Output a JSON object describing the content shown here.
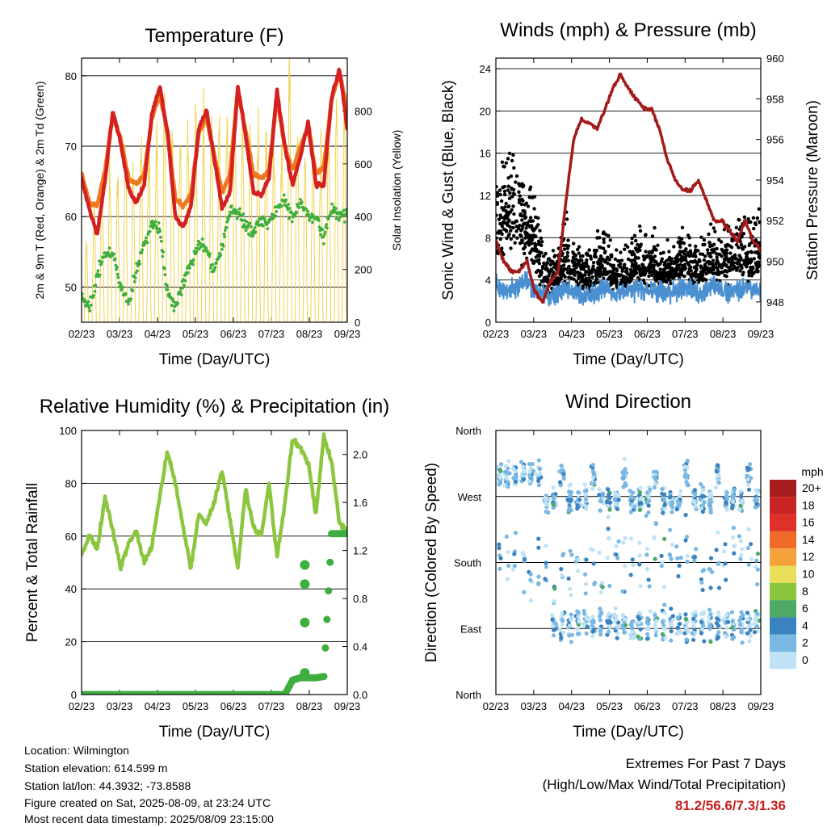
{
  "x_ticks": [
    "02/23",
    "03/23",
    "04/23",
    "05/23",
    "06/23",
    "07/23",
    "08/23",
    "09/23"
  ],
  "x_label": "Time (Day/UTC)",
  "chart_data": [
    {
      "id": "temperature",
      "type": "line",
      "title": "Temperature (F)",
      "xlabel": "Time (Day/UTC)",
      "ylabel": "2m & 9m T (Red, Orange) & 2m Td (Green)",
      "y2label": "Solar Insolation (Yellow)",
      "ylim": [
        45,
        82.5
      ],
      "y2lim": [
        0,
        1000
      ],
      "yticks": [
        50,
        60,
        70,
        80
      ],
      "y2ticks": [
        0,
        200,
        400,
        600,
        800
      ],
      "grid": true,
      "series": [
        {
          "key": "t9m",
          "color": "#f07820",
          "values": [
            66.0,
            62.0,
            61.5,
            66.5,
            74.5,
            71.0,
            65.5,
            64.5,
            66.0,
            74.0,
            77.5,
            72.0,
            62.5,
            61.5,
            63.0,
            72.0,
            74.0,
            68.5,
            63.5,
            66.0,
            78.0,
            72.0,
            66.0,
            65.5,
            66.5,
            77.0,
            70.0,
            66.5,
            70.0,
            72.5,
            66.0,
            67.0,
            76.5,
            80.5,
            75.0
          ]
        },
        {
          "key": "t2m",
          "color": "#d42020",
          "values": [
            65.5,
            61.0,
            57.5,
            65.0,
            75.0,
            70.5,
            64.0,
            62.0,
            64.5,
            74.5,
            78.5,
            72.0,
            60.0,
            58.5,
            61.5,
            72.5,
            75.0,
            68.0,
            61.0,
            63.5,
            78.5,
            71.5,
            63.5,
            63.0,
            65.5,
            78.0,
            70.0,
            64.5,
            68.5,
            73.5,
            64.5,
            64.5,
            77.0,
            81.0,
            72.5
          ]
        },
        {
          "key": "td2m",
          "color": "#3eae3e",
          "values": [
            48.5,
            47.0,
            52.0,
            54.5,
            55.0,
            50.0,
            48.0,
            52.0,
            56.0,
            59.0,
            58.0,
            49.0,
            47.0,
            50.5,
            53.5,
            56.0,
            55.5,
            52.0,
            56.0,
            61.0,
            60.5,
            59.0,
            57.5,
            60.0,
            59.0,
            61.0,
            62.0,
            60.0,
            62.0,
            60.5,
            60.0,
            57.0,
            61.0,
            60.0,
            60.5
          ]
        }
      ],
      "solar": {
        "color": "#f2d24a",
        "daily_peak": [
          300,
          420,
          520,
          600,
          550,
          700,
          620,
          760,
          680,
          740,
          800,
          720,
          690,
          760,
          780,
          820,
          800,
          760,
          740,
          800,
          760,
          720,
          760,
          740,
          700,
          680,
          980,
          800,
          620,
          720,
          700,
          760,
          800,
          780
        ]
      }
    },
    {
      "id": "winds",
      "type": "scatter",
      "title": "Winds (mph) & Pressure (mb)",
      "xlabel": "Time (Day/UTC)",
      "ylabel": "Sonic Wind & Gust (Blue, Black)",
      "y2label": "Station Pressure (Maroon)",
      "ylim": [
        0,
        25
      ],
      "y2lim": [
        947,
        960
      ],
      "yticks": [
        0,
        4,
        8,
        12,
        16,
        20,
        24
      ],
      "y2ticks": [
        948,
        950,
        952,
        954,
        956,
        958,
        960
      ],
      "grid": true,
      "series": [
        {
          "key": "wind",
          "color": "#4a90d0",
          "values": [
            3.5,
            3.2,
            3.0,
            3.4,
            3.8,
            3.0,
            2.6,
            2.4,
            2.8,
            3.2,
            2.8,
            2.6,
            2.6,
            3.0,
            3.4,
            2.8,
            2.8,
            3.0,
            3.2,
            3.0,
            3.0,
            2.8,
            2.8,
            3.0,
            3.2,
            3.0,
            2.8,
            3.0,
            3.4,
            3.0,
            3.0,
            3.2,
            3.4,
            3.0,
            3.2
          ]
        },
        {
          "key": "gust",
          "color": "#000000",
          "values": [
            8.0,
            10.0,
            11.0,
            9.0,
            8.5,
            7.5,
            4.5,
            4.0,
            4.5,
            6.0,
            5.0,
            4.5,
            4.0,
            5.0,
            5.5,
            4.0,
            4.0,
            4.5,
            5.5,
            5.0,
            5.5,
            4.5,
            4.5,
            5.0,
            5.5,
            5.0,
            4.5,
            5.5,
            6.0,
            5.5,
            6.0,
            6.5,
            6.0,
            6.0,
            6.5
          ]
        },
        {
          "key": "pressure",
          "color": "#a31a1a",
          "values": [
            951.0,
            950.0,
            949.5,
            949.5,
            950.0,
            948.5,
            948.0,
            949.0,
            949.5,
            953.0,
            956.0,
            957.0,
            956.8,
            956.5,
            957.5,
            958.5,
            959.2,
            958.5,
            958.0,
            957.5,
            957.5,
            956.5,
            955.0,
            954.0,
            953.5,
            953.5,
            954.0,
            953.0,
            952.0,
            952.0,
            951.5,
            951.0,
            952.0,
            951.0,
            950.5
          ]
        }
      ]
    },
    {
      "id": "humidity",
      "type": "line",
      "title": "Relative Humidity (%) & Precipitation (in)",
      "xlabel": "Time (Day/UTC)",
      "ylabel": "Percent & Total Rainfall",
      "ylim": [
        0,
        100
      ],
      "y2lim": [
        0,
        2.2
      ],
      "yticks": [
        0,
        20,
        40,
        60,
        80,
        100
      ],
      "y2ticks": [
        "0.0",
        "0.4",
        "0.8",
        "1.2",
        "1.6",
        "2.0"
      ],
      "grid": true,
      "series": [
        {
          "key": "rh",
          "color": "#8cc63e",
          "values": [
            53,
            60,
            55,
            75,
            62,
            48,
            57,
            62,
            50,
            56,
            75,
            92,
            80,
            63,
            48,
            68,
            65,
            73,
            85,
            66,
            48,
            78,
            63,
            60,
            80,
            52,
            72,
            97,
            93,
            88,
            68,
            98,
            88,
            65,
            62
          ]
        },
        {
          "key": "precip",
          "color": "#3eae3e",
          "values": [
            0,
            0,
            0,
            0,
            0,
            0,
            0,
            0,
            0,
            0,
            0,
            0,
            0,
            0,
            0,
            0,
            0,
            0,
            0,
            0,
            0,
            0,
            0,
            0,
            0,
            0,
            0,
            0.12,
            0.14,
            0.14,
            0.14,
            0.15,
            1.34,
            1.34,
            1.34
          ]
        }
      ]
    },
    {
      "id": "direction",
      "type": "scatter",
      "title": "Wind Direction",
      "xlabel": "Time (Day/UTC)",
      "ylabel": "Direction (Colored By Speed)",
      "ylim": [
        0,
        360
      ],
      "ycategories": [
        "North",
        "East",
        "South",
        "West",
        "North"
      ],
      "grid": true,
      "legend": {
        "title": "mph",
        "labels": [
          "20+",
          "18",
          "16",
          "14",
          "12",
          "10",
          "8",
          "6",
          "4",
          "2",
          "0"
        ],
        "colors": [
          "#a51d1d",
          "#c82426",
          "#e0302a",
          "#f06a2a",
          "#f5a23c",
          "#e9dd5a",
          "#8cc63e",
          "#4caa64",
          "#3a82c0",
          "#7ab8e4",
          "#bfe3f5"
        ],
        "placement": "right"
      }
    }
  ],
  "footer": {
    "location": "Location: Wilmington",
    "elevation": "Station elevation: 614.599 m",
    "latlon": "Station lat/lon: 44.3932; -73.8588",
    "created": "Figure created on Sat, 2025-08-09, at 23:24 UTC",
    "recent": "Most recent data timestamp: 2025/08/09 23:15:00"
  },
  "extremes": {
    "title": "Extremes For Past 7 Days",
    "subtitle": "(High/Low/Max Wind/Total Precipitation)",
    "values": "81.2/56.6/7.3/1.36"
  }
}
